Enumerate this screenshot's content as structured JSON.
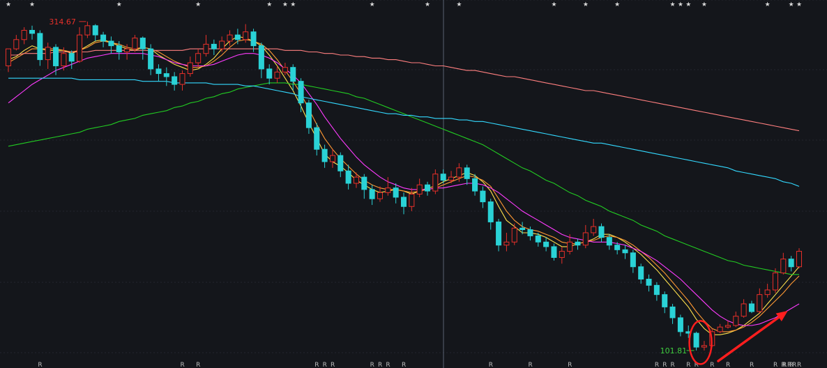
{
  "chart_data": {
    "type": "candlestick",
    "title": "",
    "ylim": [
      95,
      325
    ],
    "high_label": "314.67",
    "low_label": "101.81",
    "high_value": 314.67,
    "low_value": 101.81,
    "candles": [
      [
        286,
        297,
        297,
        282
      ],
      [
        297,
        303,
        306,
        296
      ],
      [
        303,
        309,
        311,
        300
      ],
      [
        309,
        307,
        312,
        303
      ],
      [
        307,
        290,
        309,
        286
      ],
      [
        290,
        298,
        301,
        284
      ],
      [
        298,
        286,
        300,
        280
      ],
      [
        286,
        294,
        298,
        283
      ],
      [
        294,
        289,
        296,
        284
      ],
      [
        289,
        306,
        311,
        288
      ],
      [
        306,
        312,
        314.67,
        304
      ],
      [
        312,
        306,
        313,
        302
      ],
      [
        306,
        302,
        308,
        298
      ],
      [
        302,
        299,
        305,
        294
      ],
      [
        299,
        295,
        302,
        290
      ],
      [
        295,
        297,
        300,
        290
      ],
      [
        297,
        304,
        306,
        295
      ],
      [
        304,
        297,
        305,
        290
      ],
      [
        297,
        284,
        300,
        280
      ],
      [
        284,
        281,
        287,
        276
      ],
      [
        281,
        279,
        285,
        273
      ],
      [
        279,
        274,
        282,
        270
      ],
      [
        274,
        281,
        283,
        270
      ],
      [
        281,
        288,
        292,
        279
      ],
      [
        288,
        294,
        297,
        285
      ],
      [
        294,
        300,
        306,
        292
      ],
      [
        300,
        297,
        303,
        293
      ],
      [
        297,
        302,
        305,
        295
      ],
      [
        302,
        306,
        309,
        299
      ],
      [
        306,
        303,
        310,
        300
      ],
      [
        303,
        308,
        313,
        301
      ],
      [
        308,
        299,
        310,
        295
      ],
      [
        299,
        284,
        301,
        278
      ],
      [
        284,
        278,
        287,
        274
      ],
      [
        278,
        282,
        286,
        275
      ],
      [
        282,
        285,
        288,
        280
      ],
      [
        285,
        276,
        287,
        270
      ],
      [
        276,
        262,
        278,
        256
      ],
      [
        262,
        246,
        264,
        242
      ],
      [
        246,
        232,
        249,
        228
      ],
      [
        232,
        224,
        235,
        220
      ],
      [
        224,
        228,
        232,
        220
      ],
      [
        228,
        218,
        230,
        214
      ],
      [
        218,
        210,
        222,
        206
      ],
      [
        210,
        214,
        217,
        207
      ],
      [
        214,
        206,
        216,
        200
      ],
      [
        206,
        200,
        209,
        196
      ],
      [
        200,
        204,
        208,
        198
      ],
      [
        204,
        207,
        214,
        202
      ],
      [
        207,
        201,
        210,
        197
      ],
      [
        201,
        195,
        204,
        190
      ],
      [
        195,
        203,
        207,
        192
      ],
      [
        203,
        209,
        213,
        201
      ],
      [
        209,
        205,
        211,
        202
      ],
      [
        205,
        216,
        219,
        203
      ],
      [
        216,
        212,
        219,
        210
      ],
      [
        212,
        214,
        218,
        210
      ],
      [
        214,
        220,
        223,
        211
      ],
      [
        220,
        213,
        222,
        209
      ],
      [
        213,
        205,
        216,
        202
      ],
      [
        205,
        198,
        208,
        194
      ],
      [
        198,
        185,
        200,
        180
      ],
      [
        185,
        170,
        187,
        166
      ],
      [
        170,
        172,
        178,
        166
      ],
      [
        172,
        181,
        184,
        170
      ],
      [
        181,
        180,
        185,
        177
      ],
      [
        180,
        176,
        182,
        173
      ],
      [
        176,
        172,
        178,
        169
      ],
      [
        172,
        169,
        175,
        166
      ],
      [
        169,
        162,
        171,
        160
      ],
      [
        162,
        166,
        169,
        158
      ],
      [
        166,
        172,
        177,
        164
      ],
      [
        172,
        170,
        174,
        167
      ],
      [
        170,
        178,
        183,
        168
      ],
      [
        178,
        182,
        187,
        176
      ],
      [
        182,
        175,
        184,
        172
      ],
      [
        175,
        170,
        177,
        167
      ],
      [
        170,
        167,
        172,
        164
      ],
      [
        167,
        165,
        170,
        161
      ],
      [
        165,
        156,
        167,
        152
      ],
      [
        156,
        148,
        158,
        145
      ],
      [
        148,
        144,
        151,
        140
      ],
      [
        144,
        138,
        146,
        134
      ],
      [
        138,
        130,
        140,
        126
      ],
      [
        130,
        123,
        132,
        119
      ],
      [
        123,
        114,
        125,
        111
      ],
      [
        114,
        113,
        118,
        110
      ],
      [
        113,
        104,
        114,
        101.81
      ],
      [
        104,
        105,
        108,
        101.81
      ],
      [
        105,
        114,
        116,
        104
      ],
      [
        114,
        117,
        119,
        113
      ],
      [
        117,
        118,
        121,
        116
      ],
      [
        118,
        124,
        127,
        117
      ],
      [
        124,
        132,
        135,
        123
      ],
      [
        132,
        127,
        134,
        126
      ],
      [
        127,
        138,
        142,
        126
      ],
      [
        138,
        141,
        145,
        136
      ],
      [
        141,
        152,
        155,
        139
      ],
      [
        152,
        161,
        165,
        151
      ],
      [
        161,
        156,
        163,
        153
      ],
      [
        156,
        166,
        168,
        155
      ]
    ],
    "ma_series": [
      {
        "color": "#ffe14d",
        "values": [
          290,
          292,
          296,
          299,
          297,
          296,
          296,
          296,
          294,
          296,
          299,
          302,
          303,
          301,
          299,
          297,
          296,
          298,
          297,
          293,
          290,
          287,
          285,
          283,
          284,
          287,
          291,
          297,
          302,
          305,
          304,
          302,
          299,
          293,
          286,
          278,
          270,
          260,
          249,
          239,
          229,
          224,
          221,
          217,
          212,
          209,
          206,
          204,
          205,
          206,
          205,
          203,
          205,
          207,
          208,
          211,
          213,
          215,
          217,
          215,
          211,
          205,
          195,
          186,
          182,
          178,
          178,
          177,
          175,
          172,
          169,
          169,
          171,
          172,
          174,
          177,
          177,
          175,
          172,
          168,
          164,
          159,
          154,
          148,
          142,
          136,
          130,
          122,
          116,
          112,
          112,
          113,
          115,
          118,
          122,
          126,
          132,
          138,
          144,
          150,
          156
        ]
      },
      {
        "color": "#ff9933",
        "values": [
          288,
          291,
          294,
          297,
          297,
          297,
          297,
          296,
          295,
          296,
          298,
          301,
          302,
          301,
          300,
          298,
          297,
          298,
          297,
          295,
          292,
          289,
          287,
          285,
          285,
          286,
          289,
          293,
          298,
          302,
          303,
          302,
          300,
          296,
          290,
          283,
          276,
          268,
          258,
          248,
          239,
          232,
          226,
          221,
          216,
          212,
          209,
          207,
          206,
          206,
          205,
          204,
          205,
          206,
          207,
          209,
          211,
          213,
          215,
          214,
          212,
          208,
          200,
          192,
          186,
          182,
          180,
          179,
          177,
          175,
          172,
          171,
          171,
          172,
          173,
          175,
          176,
          175,
          173,
          170,
          166,
          162,
          157,
          152,
          146,
          140,
          134,
          127,
          121,
          116,
          114,
          114,
          115,
          117,
          120,
          124,
          129,
          134,
          139,
          145,
          150
        ]
      },
      {
        "color": "#ff3bff",
        "values": [
          262,
          266,
          270,
          274,
          277,
          280,
          283,
          285,
          287,
          289,
          291,
          292,
          293,
          294,
          294,
          294,
          294,
          294,
          293,
          292,
          290,
          288,
          287,
          286,
          286,
          286,
          287,
          289,
          291,
          293,
          294,
          294,
          293,
          291,
          288,
          284,
          280,
          275,
          268,
          261,
          253,
          246,
          239,
          233,
          227,
          222,
          218,
          214,
          211,
          209,
          207,
          206,
          206,
          206,
          207,
          207,
          208,
          209,
          210,
          210,
          209,
          207,
          204,
          200,
          196,
          192,
          189,
          186,
          183,
          180,
          177,
          175,
          174,
          173,
          172,
          172,
          172,
          171,
          170,
          168,
          166,
          163,
          160,
          156,
          152,
          148,
          143,
          138,
          133,
          128,
          124,
          121,
          119,
          118,
          118,
          119,
          121,
          123,
          126,
          129,
          132
        ]
      },
      {
        "color": "#22cc22",
        "values": [
          234,
          235,
          236,
          237,
          238,
          239,
          240,
          241,
          242,
          243,
          245,
          246,
          247,
          248,
          250,
          251,
          252,
          254,
          255,
          256,
          257,
          259,
          260,
          262,
          263,
          265,
          266,
          268,
          269,
          271,
          272,
          273,
          274,
          275,
          275,
          275,
          274,
          274,
          273,
          272,
          271,
          270,
          269,
          268,
          266,
          265,
          263,
          261,
          259,
          257,
          255,
          253,
          251,
          249,
          247,
          245,
          243,
          241,
          239,
          237,
          235,
          232,
          229,
          226,
          223,
          220,
          218,
          215,
          212,
          210,
          207,
          204,
          202,
          199,
          197,
          195,
          192,
          190,
          188,
          186,
          183,
          181,
          179,
          176,
          174,
          172,
          170,
          168,
          166,
          164,
          162,
          160,
          159,
          157,
          156,
          155,
          154,
          153,
          152,
          151,
          151
        ]
      },
      {
        "color": "#33d9ff",
        "values": [
          278,
          278,
          278,
          278,
          278,
          278,
          278,
          278,
          278,
          277,
          277,
          277,
          277,
          277,
          277,
          277,
          277,
          276,
          276,
          276,
          276,
          275,
          275,
          275,
          275,
          275,
          274,
          274,
          274,
          274,
          273,
          273,
          272,
          271,
          270,
          269,
          268,
          266,
          265,
          264,
          263,
          262,
          261,
          260,
          259,
          258,
          257,
          256,
          255,
          255,
          254,
          254,
          253,
          253,
          252,
          252,
          252,
          251,
          251,
          250,
          250,
          249,
          248,
          247,
          246,
          245,
          244,
          243,
          242,
          241,
          240,
          239,
          238,
          237,
          236,
          236,
          235,
          234,
          233,
          232,
          231,
          230,
          229,
          228,
          227,
          226,
          225,
          224,
          223,
          222,
          221,
          220,
          218,
          217,
          216,
          215,
          214,
          213,
          211,
          210,
          208
        ]
      },
      {
        "color": "#ff7f7f",
        "values": [
          293,
          293,
          294,
          294,
          294,
          294,
          295,
          295,
          295,
          295,
          295,
          296,
          296,
          296,
          296,
          296,
          296,
          296,
          296,
          296,
          296,
          296,
          296,
          297,
          297,
          297,
          297,
          297,
          297,
          297,
          297,
          297,
          297,
          297,
          297,
          296,
          296,
          296,
          295,
          295,
          294,
          294,
          293,
          293,
          292,
          292,
          291,
          291,
          290,
          290,
          289,
          288,
          288,
          287,
          286,
          286,
          285,
          284,
          283,
          283,
          282,
          281,
          280,
          279,
          279,
          278,
          277,
          276,
          275,
          274,
          273,
          272,
          271,
          270,
          270,
          269,
          268,
          267,
          266,
          265,
          264,
          263,
          262,
          261,
          260,
          259,
          258,
          257,
          256,
          255,
          254,
          253,
          252,
          251,
          250,
          249,
          248,
          247,
          246,
          245,
          244
        ]
      }
    ],
    "up_color": "#e8302a",
    "down_color": "#2ad2d6",
    "grid": true,
    "annotations": {
      "marker_letters": [
        "R",
        "R",
        "R",
        "R",
        "R",
        "R",
        "R",
        "R",
        "R",
        "R",
        "R",
        "R",
        "R",
        "R",
        "R",
        "R",
        "R",
        "R",
        "R",
        "R",
        "R",
        "R",
        "R",
        "R",
        "R",
        "R",
        "R",
        "R"
      ],
      "stars": [
        "★",
        "★",
        "★",
        "★",
        "★",
        "★",
        "★",
        "★",
        "★",
        "★",
        "★",
        "★",
        "★",
        "★",
        "★",
        "★",
        "★",
        "★",
        "★",
        "★"
      ],
      "ellipse_around_low": true,
      "up_arrow": true
    }
  }
}
